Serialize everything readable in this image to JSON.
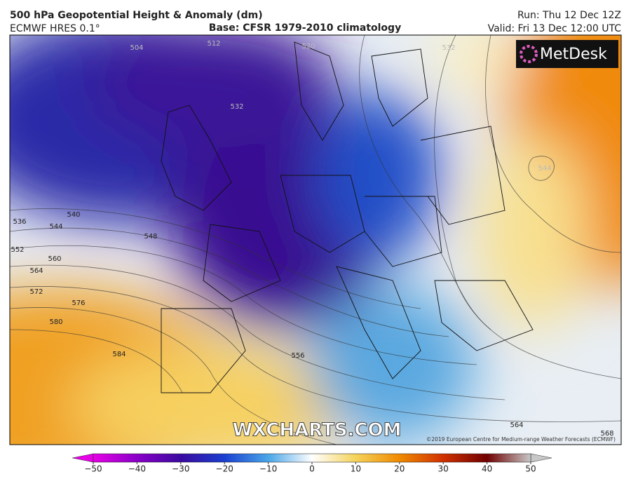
{
  "header": {
    "title": "500 hPa Geopotential Height & Anomaly (dm)",
    "model": "ECMWF HRES 0.1°",
    "base": "Base: CFSR 1979-2010 climatology",
    "run": "Run: Thu 12 Dec 12Z",
    "valid": "Valid: Fri 13 Dec 12:00 UTC"
  },
  "map": {
    "logo": "MetDesk",
    "watermark": "WXCHARTS.COM",
    "copyright": "©2019 European Centre for Medium-range Weather Forecasts (ECMWF)",
    "contour_labels": [
      504,
      512,
      520,
      532,
      532,
      536,
      540,
      544,
      548,
      552,
      560,
      564,
      572,
      576,
      580,
      584,
      556,
      544,
      564,
      568
    ]
  },
  "colorbar": {
    "min": -50,
    "max": 50,
    "ticks": [
      {
        "value": -50,
        "label": "−50"
      },
      {
        "value": -40,
        "label": "−40"
      },
      {
        "value": -30,
        "label": "−30"
      },
      {
        "value": -20,
        "label": "−20"
      },
      {
        "value": -10,
        "label": "−10"
      },
      0,
      10,
      20,
      30,
      40,
      50
    ]
  }
}
